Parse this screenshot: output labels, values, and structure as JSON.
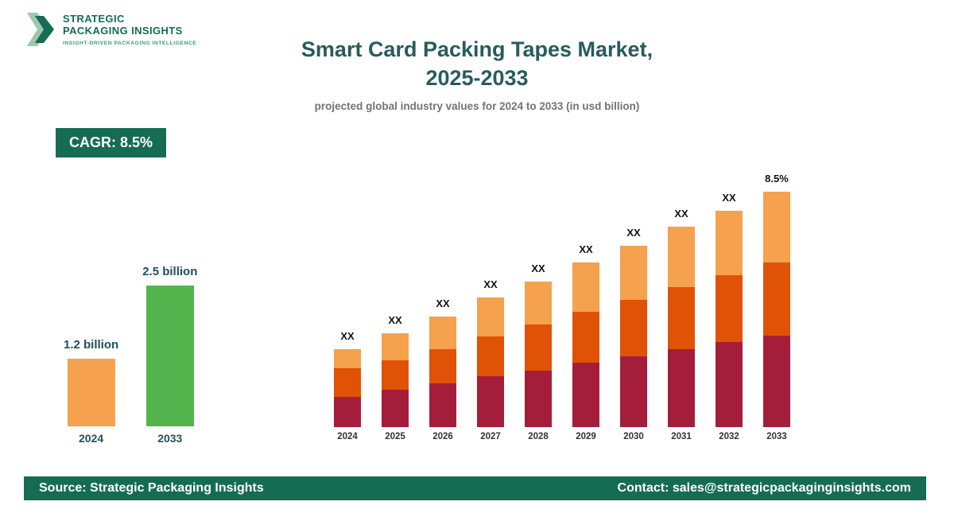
{
  "brand": {
    "name_line1": "STRATEGIC",
    "name_line2": "PACKAGING INSIGHTS",
    "tagline": "INSIGHT-DRIVEN PACKAGING INTELLIGENCE"
  },
  "header": {
    "title_line1": "Smart Card Packing Tapes Market,",
    "title_line2": "2025-2033",
    "subtitle": "projected global industry values for 2024 to 2033 (in usd billion)"
  },
  "cagr_badge": "CAGR: 8.5%",
  "footer": {
    "source": "Source: Strategic Packaging Insights",
    "contact": "Contact: sales@strategicpackaginginsights.com"
  },
  "colors": {
    "dark_green": "#156C52",
    "light_green_logo": "#9CC8AD",
    "title_teal": "#275C5B",
    "orange_light": "#F5A14D",
    "orange_dark": "#E05206",
    "crimson": "#A41E3C",
    "green_bar": "#53B44E"
  },
  "chart_data": [
    {
      "type": "bar",
      "name": "summary-comparison",
      "title": "",
      "categories": [
        "2024",
        "2033"
      ],
      "values": [
        1.2,
        2.5
      ],
      "value_labels": [
        "1.2 billion",
        "2.5 billion"
      ],
      "unit": "usd billion",
      "bar_colors": [
        "#F5A14D",
        "#53B44E"
      ],
      "grid": false,
      "legend": false
    },
    {
      "type": "bar",
      "name": "stacked-projection",
      "stacked": true,
      "title": "Smart Card Packing Tapes Market, 2025-2033",
      "categories": [
        "2024",
        "2025",
        "2026",
        "2027",
        "2028",
        "2029",
        "2030",
        "2031",
        "2032",
        "2033"
      ],
      "bar_top_labels": [
        "XX",
        "XX",
        "XX",
        "XX",
        "XX",
        "XX",
        "XX",
        "XX",
        "XX",
        "8.5%"
      ],
      "value_unit": "relative height, % of 2033 bar (actual values masked as XX)",
      "series": [
        {
          "name": "segment-bottom",
          "color": "#A41E3C",
          "values": [
            13,
            16,
            18.5,
            21.5,
            24,
            27.5,
            30,
            33,
            36,
            39
          ]
        },
        {
          "name": "segment-middle",
          "color": "#E05206",
          "values": [
            12,
            12.5,
            14.5,
            17,
            19.5,
            21.5,
            24,
            26.5,
            28.5,
            31
          ]
        },
        {
          "name": "segment-top",
          "color": "#F5A14D",
          "values": [
            8,
            11.5,
            14,
            16.5,
            18.5,
            21,
            23,
            25.5,
            27.5,
            30
          ]
        }
      ],
      "grid": false,
      "legend": false,
      "cagr": "8.5%"
    }
  ]
}
